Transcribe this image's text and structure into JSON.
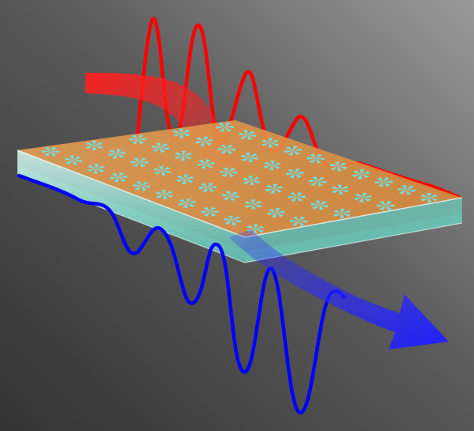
{
  "scene": {
    "background": {
      "top_left": "#4a4a4a",
      "top_right": "#8a8a8a",
      "bottom": "#3b3b3b"
    },
    "slab": {
      "top_color": "#e59a4a",
      "side_color": "#b8e0d8",
      "glass_color": "#7fd3c7",
      "pattern_color": "#6ee0e8",
      "pattern": "pinwheel-metamaterial"
    },
    "incident_beam": {
      "color": "#ff1a1a",
      "shape": "arrow"
    },
    "transmitted_beam": {
      "color": "#1a1aff",
      "shape": "arrow"
    },
    "incident_wave": {
      "color": "#ff0000"
    },
    "transmitted_wave": {
      "color": "#0000ff"
    }
  }
}
